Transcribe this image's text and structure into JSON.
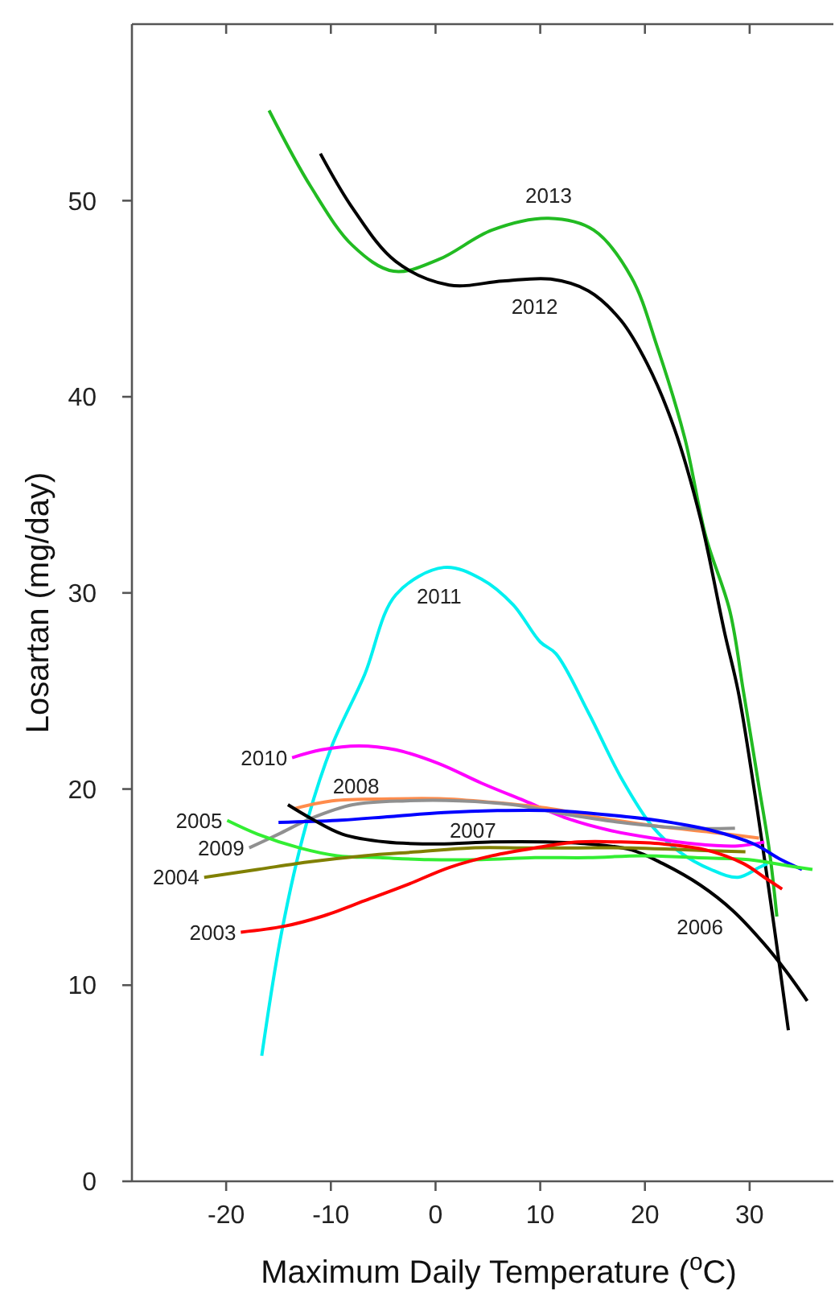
{
  "chart_data": {
    "type": "line",
    "xlabel": "Maximum Daily Temperature ($^{o}$C)",
    "ylabel": "Losartan (mg/day)",
    "xlim": [
      -29,
      38
    ],
    "ylim": [
      0,
      59
    ],
    "xticks": [
      -20,
      -10,
      0,
      10,
      20,
      30
    ],
    "yticks": [
      0,
      10,
      20,
      30,
      40,
      50
    ],
    "grid": false,
    "marker": "none",
    "line_style": "solid",
    "series": [
      {
        "name": "2013",
        "color": "#22bb22",
        "x": [
          -15.9,
          -11.9,
          -7.9,
          -4.0,
          0.3,
          5.4,
          10.8,
          15.1,
          18.7,
          21.2,
          23.8,
          25.8,
          28.1,
          29.4,
          30.9,
          31.9,
          32.6
        ],
        "values": [
          54.6,
          50.7,
          47.7,
          46.4,
          47.0,
          48.5,
          49.1,
          48.5,
          46.1,
          42.5,
          37.9,
          32.9,
          29.1,
          25.0,
          20.1,
          16.8,
          13.5
        ]
      },
      {
        "name": "2012",
        "color": "#000000",
        "x": [
          -11.0,
          -7.9,
          -3.8,
          1.3,
          6.4,
          11.0,
          14.6,
          17.7,
          20.2,
          22.8,
          25.3,
          27.6,
          28.9,
          30.4,
          31.7,
          32.7,
          33.7
        ],
        "values": [
          52.4,
          49.6,
          46.9,
          45.7,
          45.9,
          46.0,
          45.4,
          43.9,
          41.7,
          38.4,
          33.8,
          28.0,
          25.0,
          20.1,
          15.4,
          11.6,
          7.7
        ]
      },
      {
        "name": "2011",
        "color": "#00f0f0",
        "x": [
          -16.6,
          -14.7,
          -12.4,
          -9.9,
          -6.8,
          -3.8,
          0.8,
          4.4,
          7.4,
          10.0,
          11.5,
          14.6,
          17.7,
          20.7,
          23.3,
          26.3,
          28.9,
          30.9,
          31.7
        ],
        "values": [
          6.4,
          12.7,
          18.1,
          22.2,
          25.8,
          29.9,
          31.3,
          30.7,
          29.4,
          27.5,
          26.9,
          23.9,
          20.6,
          18.1,
          16.8,
          15.9,
          15.5,
          16.0,
          16.2
        ]
      },
      {
        "name": "2010",
        "color": "#ff00ff",
        "x": [
          -13.7,
          -10.9,
          -7.3,
          -3.8,
          0.3,
          4.4,
          8.5,
          12.6,
          16.6,
          20.7,
          24.8,
          28.9,
          31.4
        ],
        "values": [
          21.6,
          22.0,
          22.2,
          22.0,
          21.3,
          20.3,
          19.4,
          18.5,
          17.9,
          17.5,
          17.2,
          17.1,
          17.3
        ]
      },
      {
        "name": "2008",
        "color": "#ff8c4c",
        "x": [
          -13.5,
          -9.9,
          -4.3,
          0.8,
          5.9,
          11.0,
          16.1,
          21.2,
          26.3,
          30.9
        ],
        "values": [
          19.0,
          19.4,
          19.5,
          19.5,
          19.3,
          19.0,
          18.5,
          18.1,
          17.8,
          17.5
        ]
      },
      {
        "name": "2009",
        "color": "#909090",
        "x": [
          -17.8,
          -15.0,
          -11.9,
          -7.9,
          -2.8,
          2.3,
          7.4,
          12.6,
          17.7,
          23.8,
          28.6
        ],
        "values": [
          17.0,
          17.7,
          18.5,
          19.2,
          19.4,
          19.4,
          19.2,
          18.7,
          18.3,
          18.0,
          18.0
        ]
      },
      {
        "name": "2007",
        "color": "#0000ff",
        "x": [
          -15.0,
          -9.4,
          -4.3,
          0.8,
          5.9,
          11.0,
          16.1,
          21.2,
          26.3,
          30.4,
          33.0,
          35.0
        ],
        "values": [
          18.3,
          18.4,
          18.6,
          18.8,
          18.9,
          18.9,
          18.7,
          18.4,
          17.9,
          17.2,
          16.4,
          15.9
        ]
      },
      {
        "name": "2006",
        "color": "#000000",
        "x": [
          -14.1,
          -11.9,
          -8.9,
          -4.8,
          0.3,
          5.4,
          10.5,
          14.6,
          18.7,
          21.7,
          25.3,
          28.4,
          31.4,
          33.5,
          35.5
        ],
        "values": [
          19.2,
          18.5,
          17.7,
          17.3,
          17.2,
          17.3,
          17.3,
          17.2,
          16.9,
          16.2,
          15.1,
          13.8,
          12.1,
          10.7,
          9.2
        ]
      },
      {
        "name": "2005",
        "color": "#33ee33",
        "x": [
          -19.9,
          -17.0,
          -13.0,
          -9.4,
          -5.3,
          -0.7,
          4.4,
          9.5,
          14.6,
          19.7,
          24.8,
          29.9,
          33.5,
          36.0
        ],
        "values": [
          18.4,
          17.7,
          17.0,
          16.6,
          16.5,
          16.4,
          16.4,
          16.5,
          16.5,
          16.6,
          16.5,
          16.4,
          16.1,
          15.9
        ]
      },
      {
        "name": "2004",
        "color": "#808000",
        "x": [
          -22.1,
          -17.0,
          -11.9,
          -6.8,
          -1.7,
          3.4,
          8.5,
          13.6,
          18.7,
          23.8,
          29.6
        ],
        "values": [
          15.5,
          15.9,
          16.3,
          16.6,
          16.8,
          17.0,
          17.0,
          17.0,
          17.0,
          16.9,
          16.8
        ]
      },
      {
        "name": "2003",
        "color": "#ff0000",
        "x": [
          -18.6,
          -14.5,
          -10.9,
          -6.8,
          -2.8,
          1.3,
          5.4,
          9.5,
          13.6,
          17.7,
          21.7,
          25.8,
          29.4,
          31.4,
          33.1
        ],
        "values": [
          12.7,
          13.0,
          13.5,
          14.3,
          15.1,
          16.0,
          16.6,
          17.0,
          17.3,
          17.3,
          17.2,
          16.9,
          16.2,
          15.5,
          14.9
        ]
      }
    ]
  }
}
